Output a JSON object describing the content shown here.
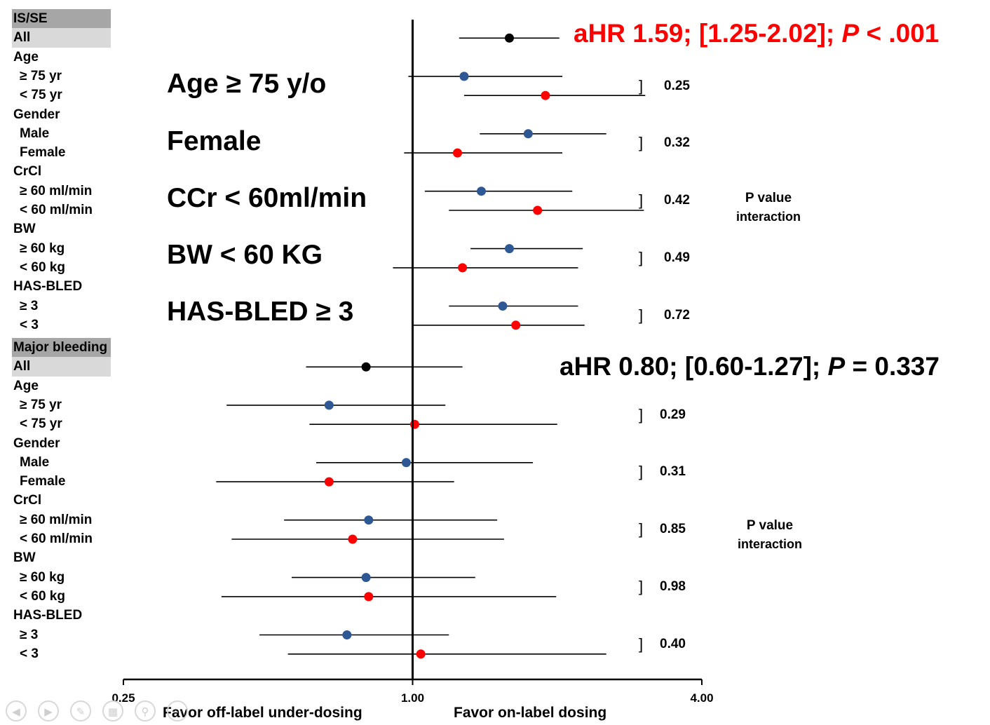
{
  "sections": [
    {
      "header": "IS/SE",
      "all_label": "All",
      "overall": {
        "hr": 1.59,
        "lo": 1.25,
        "hi": 2.02,
        "color": "#000000"
      },
      "result_parts": {
        "a": "aHR 1.59; [1.25-2.02]; ",
        "p": "P",
        "b": " < .001",
        "color": "#ff0000"
      },
      "groups": [
        {
          "name": "Age",
          "rows": [
            {
              "label": "≥ 75 yr",
              "hr": 1.28,
              "lo": 0.98,
              "hi": 2.05,
              "color": "#2e5894"
            },
            {
              "label": "<  75 yr",
              "hr": 1.89,
              "lo": 1.28,
              "hi": 3.05,
              "color": "#ff0000"
            }
          ],
          "p": "0.25"
        },
        {
          "name": "Gender",
          "rows": [
            {
              "label": "Male",
              "hr": 1.74,
              "lo": 1.38,
              "hi": 2.53,
              "color": "#2e5894"
            },
            {
              "label": "Female",
              "hr": 1.24,
              "lo": 0.96,
              "hi": 2.05,
              "color": "#ff0000"
            }
          ],
          "p": "0.32"
        },
        {
          "name": "CrCl",
          "rows": [
            {
              "label": "≥ 60 ml/min",
              "hr": 1.39,
              "lo": 1.06,
              "hi": 2.15,
              "color": "#2e5894"
            },
            {
              "label": "<  60 ml/min",
              "hr": 1.82,
              "lo": 1.19,
              "hi": 3.03,
              "color": "#ff0000"
            }
          ],
          "p": "0.42"
        },
        {
          "name": "BW",
          "rows": [
            {
              "label": "≥ 60 kg",
              "hr": 1.59,
              "lo": 1.32,
              "hi": 2.26,
              "color": "#2e5894"
            },
            {
              "label": "<  60 kg",
              "hr": 1.27,
              "lo": 0.91,
              "hi": 2.21,
              "color": "#ff0000"
            }
          ],
          "p": "0.49"
        },
        {
          "name": "HAS-BLED",
          "rows": [
            {
              "label": "≥ 3",
              "hr": 1.54,
              "lo": 1.19,
              "hi": 2.21,
              "color": "#2e5894"
            },
            {
              "label": "<  3",
              "hr": 1.64,
              "lo": 1.0,
              "hi": 2.28,
              "color": "#ff0000"
            }
          ],
          "p": "0.72"
        }
      ]
    },
    {
      "header": "Major bleeding",
      "all_label": "All",
      "overall": {
        "hr": 0.8,
        "lo": 0.6,
        "hi": 1.27,
        "color": "#000000"
      },
      "result_parts": {
        "a": "aHR 0.80; [0.60-1.27]; ",
        "p": "P",
        "b": " = 0.337",
        "color": "#000000"
      },
      "groups": [
        {
          "name": "Age",
          "rows": [
            {
              "label": "≥ 75 yr",
              "hr": 0.67,
              "lo": 0.41,
              "hi": 1.17,
              "color": "#2e5894"
            },
            {
              "label": "<  75 yr",
              "hr": 1.01,
              "lo": 0.61,
              "hi": 2.0,
              "color": "#ff0000"
            }
          ],
          "p": "0.29"
        },
        {
          "name": "Gender",
          "rows": [
            {
              "label": "Male",
              "hr": 0.97,
              "lo": 0.63,
              "hi": 1.78,
              "color": "#2e5894"
            },
            {
              "label": "Female",
              "hr": 0.67,
              "lo": 0.39,
              "hi": 1.22,
              "color": "#ff0000"
            }
          ],
          "p": "0.31"
        },
        {
          "name": "CrCl",
          "rows": [
            {
              "label": "≥ 60 ml/min",
              "hr": 0.81,
              "lo": 0.54,
              "hi": 1.5,
              "color": "#2e5894"
            },
            {
              "label": "<  60 ml/min",
              "hr": 0.75,
              "lo": 0.42,
              "hi": 1.55,
              "color": "#ff0000"
            }
          ],
          "p": "0.85"
        },
        {
          "name": "BW",
          "rows": [
            {
              "label": "≥ 60 kg",
              "hr": 0.8,
              "lo": 0.56,
              "hi": 1.35,
              "color": "#2e5894"
            },
            {
              "label": "<  60 kg",
              "hr": 0.81,
              "lo": 0.4,
              "hi": 1.99,
              "color": "#ff0000"
            }
          ],
          "p": "0.98"
        },
        {
          "name": "HAS-BLED",
          "rows": [
            {
              "label": "≥ 3",
              "hr": 0.73,
              "lo": 0.48,
              "hi": 1.19,
              "color": "#2e5894"
            },
            {
              "label": "<  3",
              "hr": 1.04,
              "lo": 0.55,
              "hi": 2.53,
              "color": "#ff0000"
            }
          ],
          "p": "0.40"
        }
      ]
    }
  ],
  "annotations": [
    "Age ≥ 75 y/o",
    "Female",
    "CCr < 60ml/min",
    "BW < 60 KG",
    "HAS-BLED ≥ 3"
  ],
  "p_interaction": {
    "line1": "P value",
    "line2": "interaction"
  },
  "chart_data": {
    "type": "forest",
    "x_scale": "log",
    "xlim": [
      0.25,
      4.0
    ],
    "ticks": [
      "0.25",
      "1.00",
      "4.00"
    ],
    "tick_values": [
      0.25,
      1.0,
      4.0
    ],
    "reference_line": 1.0,
    "xlabel_left": "Favor off-label under-dosing",
    "xlabel_right": "Favor on-label dosing"
  },
  "nav_icons": [
    "back-icon",
    "forward-icon",
    "pen-icon",
    "menu-icon",
    "zoom-icon",
    "more-icon"
  ]
}
